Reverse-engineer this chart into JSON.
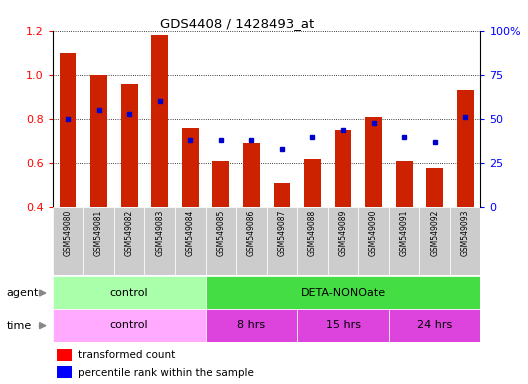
{
  "title": "GDS4408 / 1428493_at",
  "samples": [
    "GSM549080",
    "GSM549081",
    "GSM549082",
    "GSM549083",
    "GSM549084",
    "GSM549085",
    "GSM549086",
    "GSM549087",
    "GSM549088",
    "GSM549089",
    "GSM549090",
    "GSM549091",
    "GSM549092",
    "GSM549093"
  ],
  "transformed_count": [
    1.1,
    1.0,
    0.96,
    1.18,
    0.76,
    0.61,
    0.69,
    0.51,
    0.62,
    0.75,
    0.81,
    0.61,
    0.58,
    0.93
  ],
  "percentile_rank": [
    50,
    55,
    53,
    60,
    38,
    38,
    38,
    33,
    40,
    44,
    48,
    40,
    37,
    51
  ],
  "ylim_left": [
    0.4,
    1.2
  ],
  "ylim_right": [
    0,
    100
  ],
  "yticks_left": [
    0.4,
    0.6,
    0.8,
    1.0,
    1.2
  ],
  "yticks_right": [
    0,
    25,
    50,
    75,
    100
  ],
  "bar_color_red": "#CC2200",
  "bar_color_blue": "#0000CC",
  "agent_groups": [
    {
      "label": "control",
      "start": 0,
      "end": 4,
      "color": "#AAFFAA"
    },
    {
      "label": "DETA-NONOate",
      "start": 5,
      "end": 13,
      "color": "#44DD44"
    }
  ],
  "time_groups": [
    {
      "label": "control",
      "start": 0,
      "end": 4,
      "color": "#FFAAFF"
    },
    {
      "label": "8 hrs",
      "start": 5,
      "end": 7,
      "color": "#DD44DD"
    },
    {
      "label": "15 hrs",
      "start": 8,
      "end": 10,
      "color": "#DD44DD"
    },
    {
      "label": "24 hrs",
      "start": 11,
      "end": 13,
      "color": "#DD44DD"
    }
  ],
  "legend_red_label": "transformed count",
  "legend_blue_label": "percentile rank within the sample",
  "background_color": "#FFFFFF",
  "agent_label": "agent",
  "time_label": "time"
}
